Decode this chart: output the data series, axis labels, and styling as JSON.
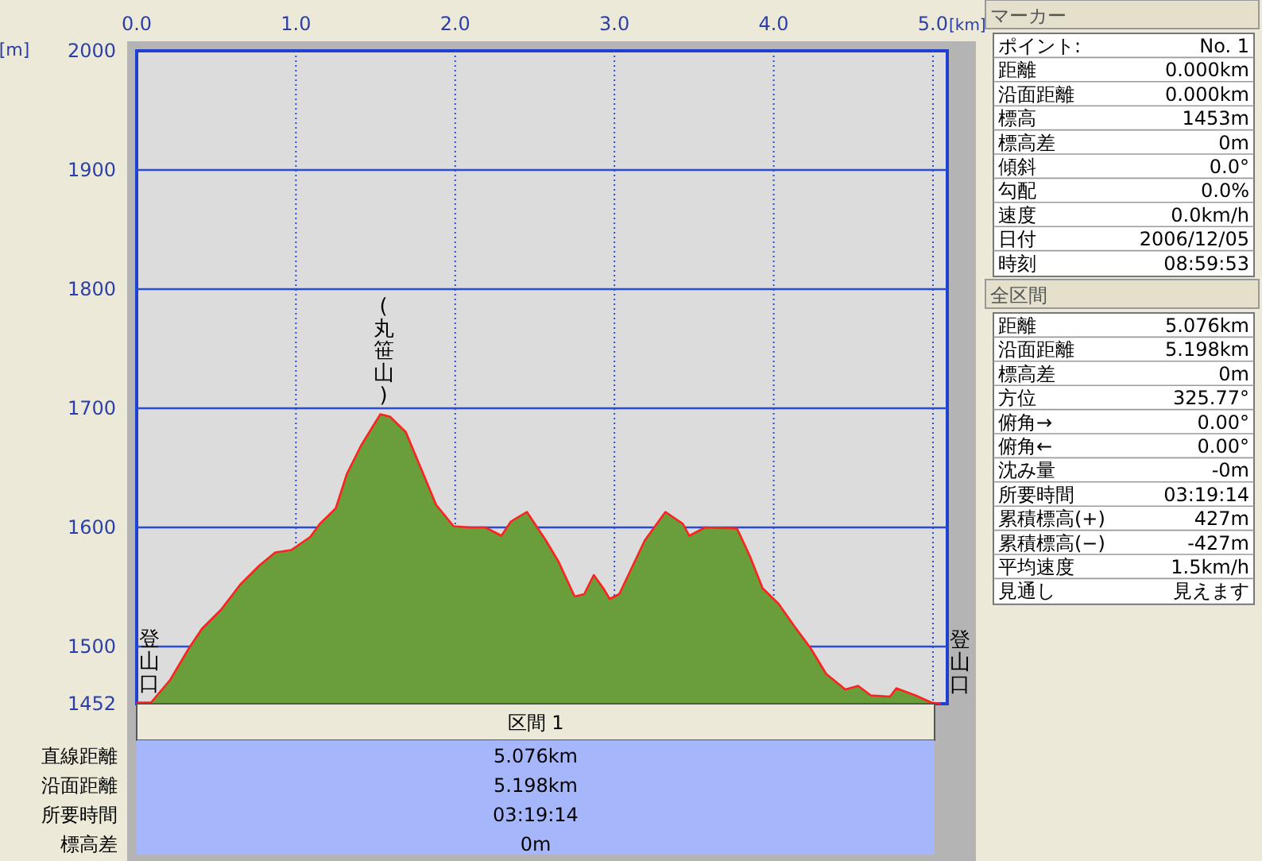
{
  "chart_data": [
    {
      "type": "area",
      "xlabel": "[km]",
      "ylabel": "[m]",
      "xlim": [
        0,
        5.09
      ],
      "ylim": [
        1452,
        2000
      ],
      "xticks": [
        {
          "value": 0,
          "label": "0.0"
        },
        {
          "value": 1,
          "label": "1.0"
        },
        {
          "value": 2,
          "label": "2.0"
        },
        {
          "value": 3,
          "label": "3.0"
        },
        {
          "value": 4,
          "label": "4.0"
        },
        {
          "value": 5,
          "label": "5.0"
        }
      ],
      "yticks": [
        1452,
        1500,
        1600,
        1700,
        1800,
        1900,
        2000
      ],
      "grid": true,
      "x": [
        0,
        0.09,
        0.21,
        0.33,
        0.41,
        0.53,
        0.65,
        0.77,
        0.87,
        0.97,
        1.09,
        1.15,
        1.25,
        1.32,
        1.41,
        1.53,
        1.59,
        1.69,
        1.79,
        1.88,
        1.99,
        2.09,
        2.19,
        2.29,
        2.35,
        2.45,
        2.57,
        2.65,
        2.75,
        2.81,
        2.87,
        2.93,
        2.97,
        3.03,
        3.19,
        3.32,
        3.43,
        3.47,
        3.57,
        3.77,
        3.85,
        3.93,
        4.03,
        4.13,
        4.23,
        4.33,
        4.45,
        4.53,
        4.61,
        4.73,
        4.77,
        4.89,
        4.99,
        5.05
      ],
      "series": [
        {
          "color": "#6a9e3a",
          "values": [
            1453,
            1453,
            1472,
            1499,
            1515,
            1531,
            1552,
            1568,
            1579,
            1581,
            1592,
            1603,
            1616,
            1645,
            1669,
            1695,
            1693,
            1680,
            1648,
            1619,
            1601,
            1600,
            1600,
            1593,
            1605,
            1613,
            1589,
            1571,
            1542,
            1544,
            1560,
            1549,
            1540,
            1544,
            1589,
            1613,
            1603,
            1593,
            1600,
            1599,
            1576,
            1549,
            1536,
            1517,
            1499,
            1477,
            1464,
            1467,
            1459,
            1458,
            1465,
            1459,
            1453,
            1452
          ]
        }
      ],
      "annotations": [
        {
          "text": "(丸笹山)",
          "x": 1.55,
          "y": 1695
        },
        {
          "text": "登山口",
          "x": 0,
          "y": 1453
        },
        {
          "text": "登山口",
          "x": 5.05,
          "y": 1452
        }
      ]
    },
    {
      "type": "other",
      "title": "区間 1",
      "annotations": [
        "直線距離",
        "5.076km",
        "沿面距離",
        "5.198km",
        "所要時間",
        "03:19:14",
        "標高差",
        "0m"
      ]
    },
    {
      "type": "other",
      "title": "マーカー",
      "annotations": [
        "ポイント:",
        "No. 1",
        "距離",
        "0.000km",
        "沿面距離",
        "0.000km",
        "標高",
        "1453m",
        "標高差",
        "0m",
        "傾斜",
        "0.0°",
        "勾配",
        "0.0%",
        "速度",
        "0.0km/h",
        "日付",
        "2006/12/05",
        "時刻",
        "08:59:53"
      ]
    },
    {
      "type": "other",
      "title": "全区間",
      "annotations": [
        "距離",
        "5.076km",
        "沿面距離",
        "5.198km",
        "標高差",
        "0m",
        "方位",
        "325.77°",
        "俯角→",
        "0.00°",
        "俯角←",
        "0.00°",
        "沈み量",
        "-0m",
        "所要時間",
        "03:19:14",
        "累積標高(+)",
        "427m",
        "累積標高(−)",
        "-427m",
        "平均速度",
        "1.5km/h",
        "見通し",
        "見えます"
      ]
    }
  ]
}
